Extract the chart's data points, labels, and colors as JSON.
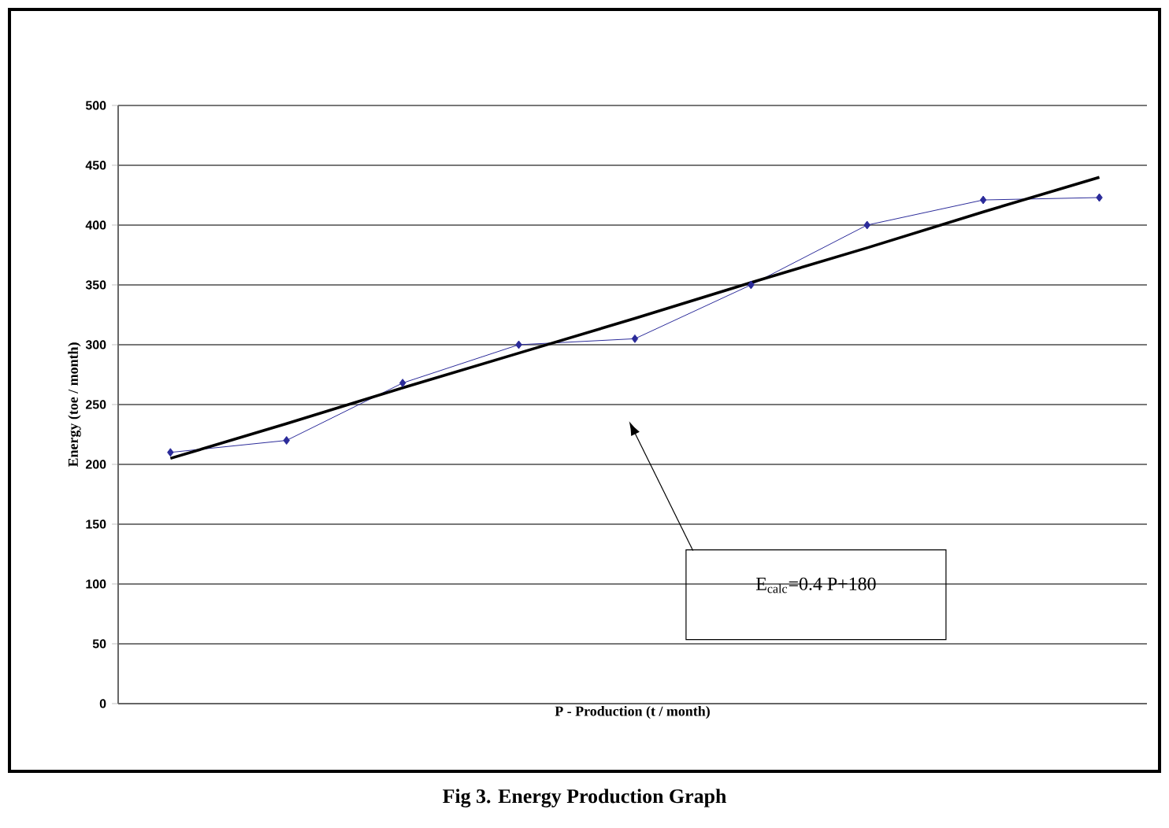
{
  "chart_data": {
    "type": "line",
    "title": "Fig 3. Energy Production Graph",
    "xlabel": "P - Production (t / month)",
    "ylabel": "Energy (toe / month)",
    "annotations": [
      "E$_{calc}$=0.4 P+180"
    ],
    "categories": [
      null,
      null,
      null,
      null,
      null,
      null,
      null,
      null,
      null
    ],
    "series": [
      {
        "color": "#2b2b9a",
        "marker": "diamond",
        "values": [
          210,
          220,
          268,
          300,
          305,
          350,
          400,
          421,
          423
        ]
      },
      {
        "type": "line",
        "color": "#000000",
        "marker": "none",
        "values": [
          205,
          234,
          264,
          293,
          322,
          352,
          381,
          411,
          440
        ]
      }
    ],
    "ylim": [
      0,
      500
    ],
    "yticks": [
      0,
      50,
      100,
      150,
      200,
      250,
      300,
      350,
      400,
      450,
      500
    ],
    "grid": "y"
  }
}
